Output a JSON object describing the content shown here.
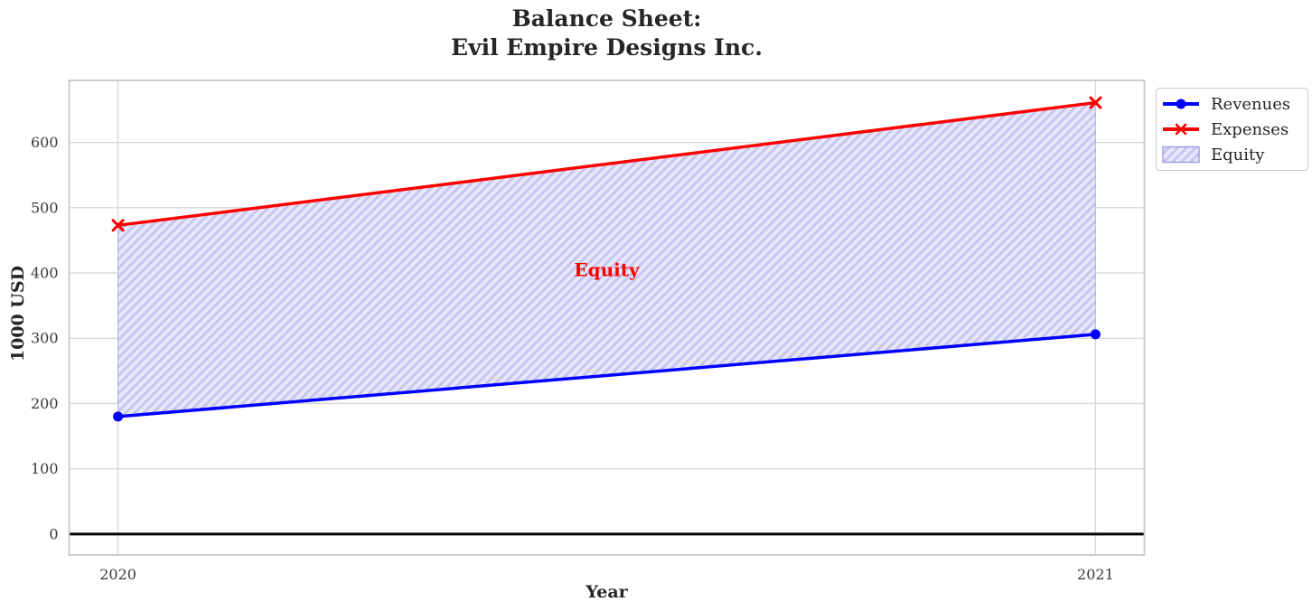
{
  "title": "Balance Sheet:\nEvil Empire Designs Inc.",
  "chart_data": {
    "type": "line",
    "x": [
      2020,
      2021
    ],
    "series": [
      {
        "name": "Revenues",
        "values": [
          180,
          306
        ],
        "color": "#0000ff",
        "marker": "circle"
      },
      {
        "name": "Expenses",
        "values": [
          473,
          661
        ],
        "color": "#ff0000",
        "marker": "x"
      }
    ],
    "fill_between": {
      "name": "Equity",
      "lower": "Revenues",
      "upper": "Expenses",
      "fill_color": "#e7e7fa",
      "hatch_color": "#c6c6f0",
      "edge_color": "#9c9ce0",
      "hatch_style": "/"
    },
    "annotation": {
      "text": "Equity",
      "x": 2020.5,
      "y": 405,
      "color": "#ff0000"
    },
    "baseline": 0,
    "xlabel": "Year",
    "ylabel": "1000 USD",
    "xticks": [
      2020,
      2021
    ],
    "xtick_labels": [
      "2020",
      "2021"
    ],
    "yticks": [
      0,
      100,
      200,
      300,
      400,
      500,
      600
    ],
    "ytick_labels": [
      "0",
      "100",
      "200",
      "300",
      "400",
      "500",
      "600"
    ],
    "xlim": [
      2019.95,
      2021.05
    ],
    "ylim": [
      -32,
      695
    ],
    "grid": true,
    "legend": {
      "position": "outside-top-right",
      "entries": [
        "Revenues",
        "Expenses",
        "Equity"
      ]
    },
    "colors": {
      "grid": "#d6d6d6",
      "spine": "#c9c9c9",
      "baseline": "#000000",
      "tick_label": "#3a3a3a",
      "title": "#262626"
    }
  }
}
